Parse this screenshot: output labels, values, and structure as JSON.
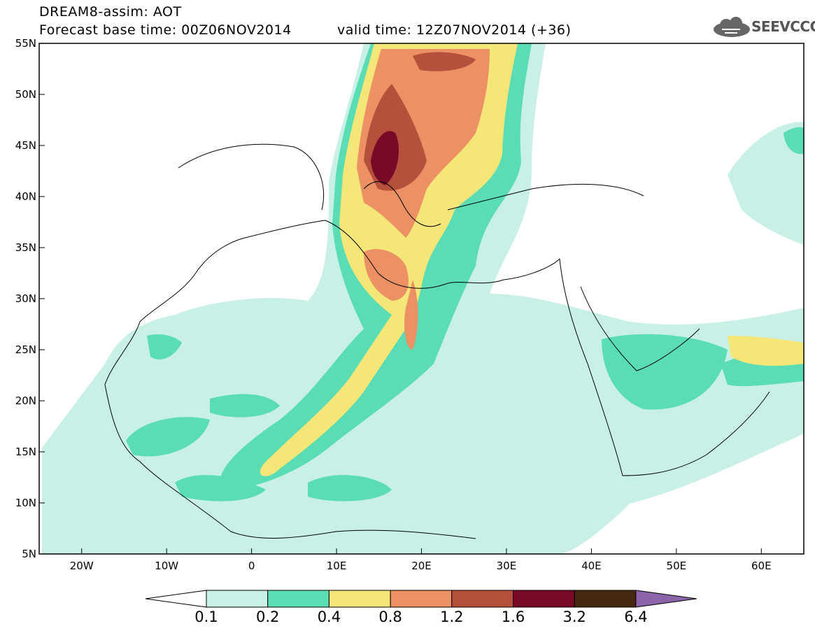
{
  "header": {
    "line1": "DREAM8-assim: AOT",
    "line2": "Forecast base time: 00Z06NOV2014",
    "valid": "valid time: 12Z07NOV2014 (+36)"
  },
  "logo": {
    "text": "SEEVCCC",
    "icon": "cloud-icon"
  },
  "map": {
    "lon_range": [
      -25,
      65
    ],
    "lat_range": [
      5,
      55
    ],
    "lat_ticks": [
      "5N",
      "10N",
      "15N",
      "20N",
      "25N",
      "30N",
      "35N",
      "40N",
      "45N",
      "50N",
      "55N"
    ],
    "lon_ticks": [
      "20W",
      "10W",
      "0",
      "10E",
      "20E",
      "30E",
      "40E",
      "50E",
      "60E"
    ]
  },
  "colorbar": {
    "labels": [
      "0.1",
      "0.2",
      "0.4",
      "0.8",
      "1.2",
      "1.6",
      "3.2",
      "6.4"
    ],
    "colors": [
      "#ffffff",
      "#c8f0e6",
      "#5adcb4",
      "#f5e678",
      "#eb9164",
      "#b4503c",
      "#780a28",
      "#46280f",
      "#8c64aa"
    ]
  }
}
